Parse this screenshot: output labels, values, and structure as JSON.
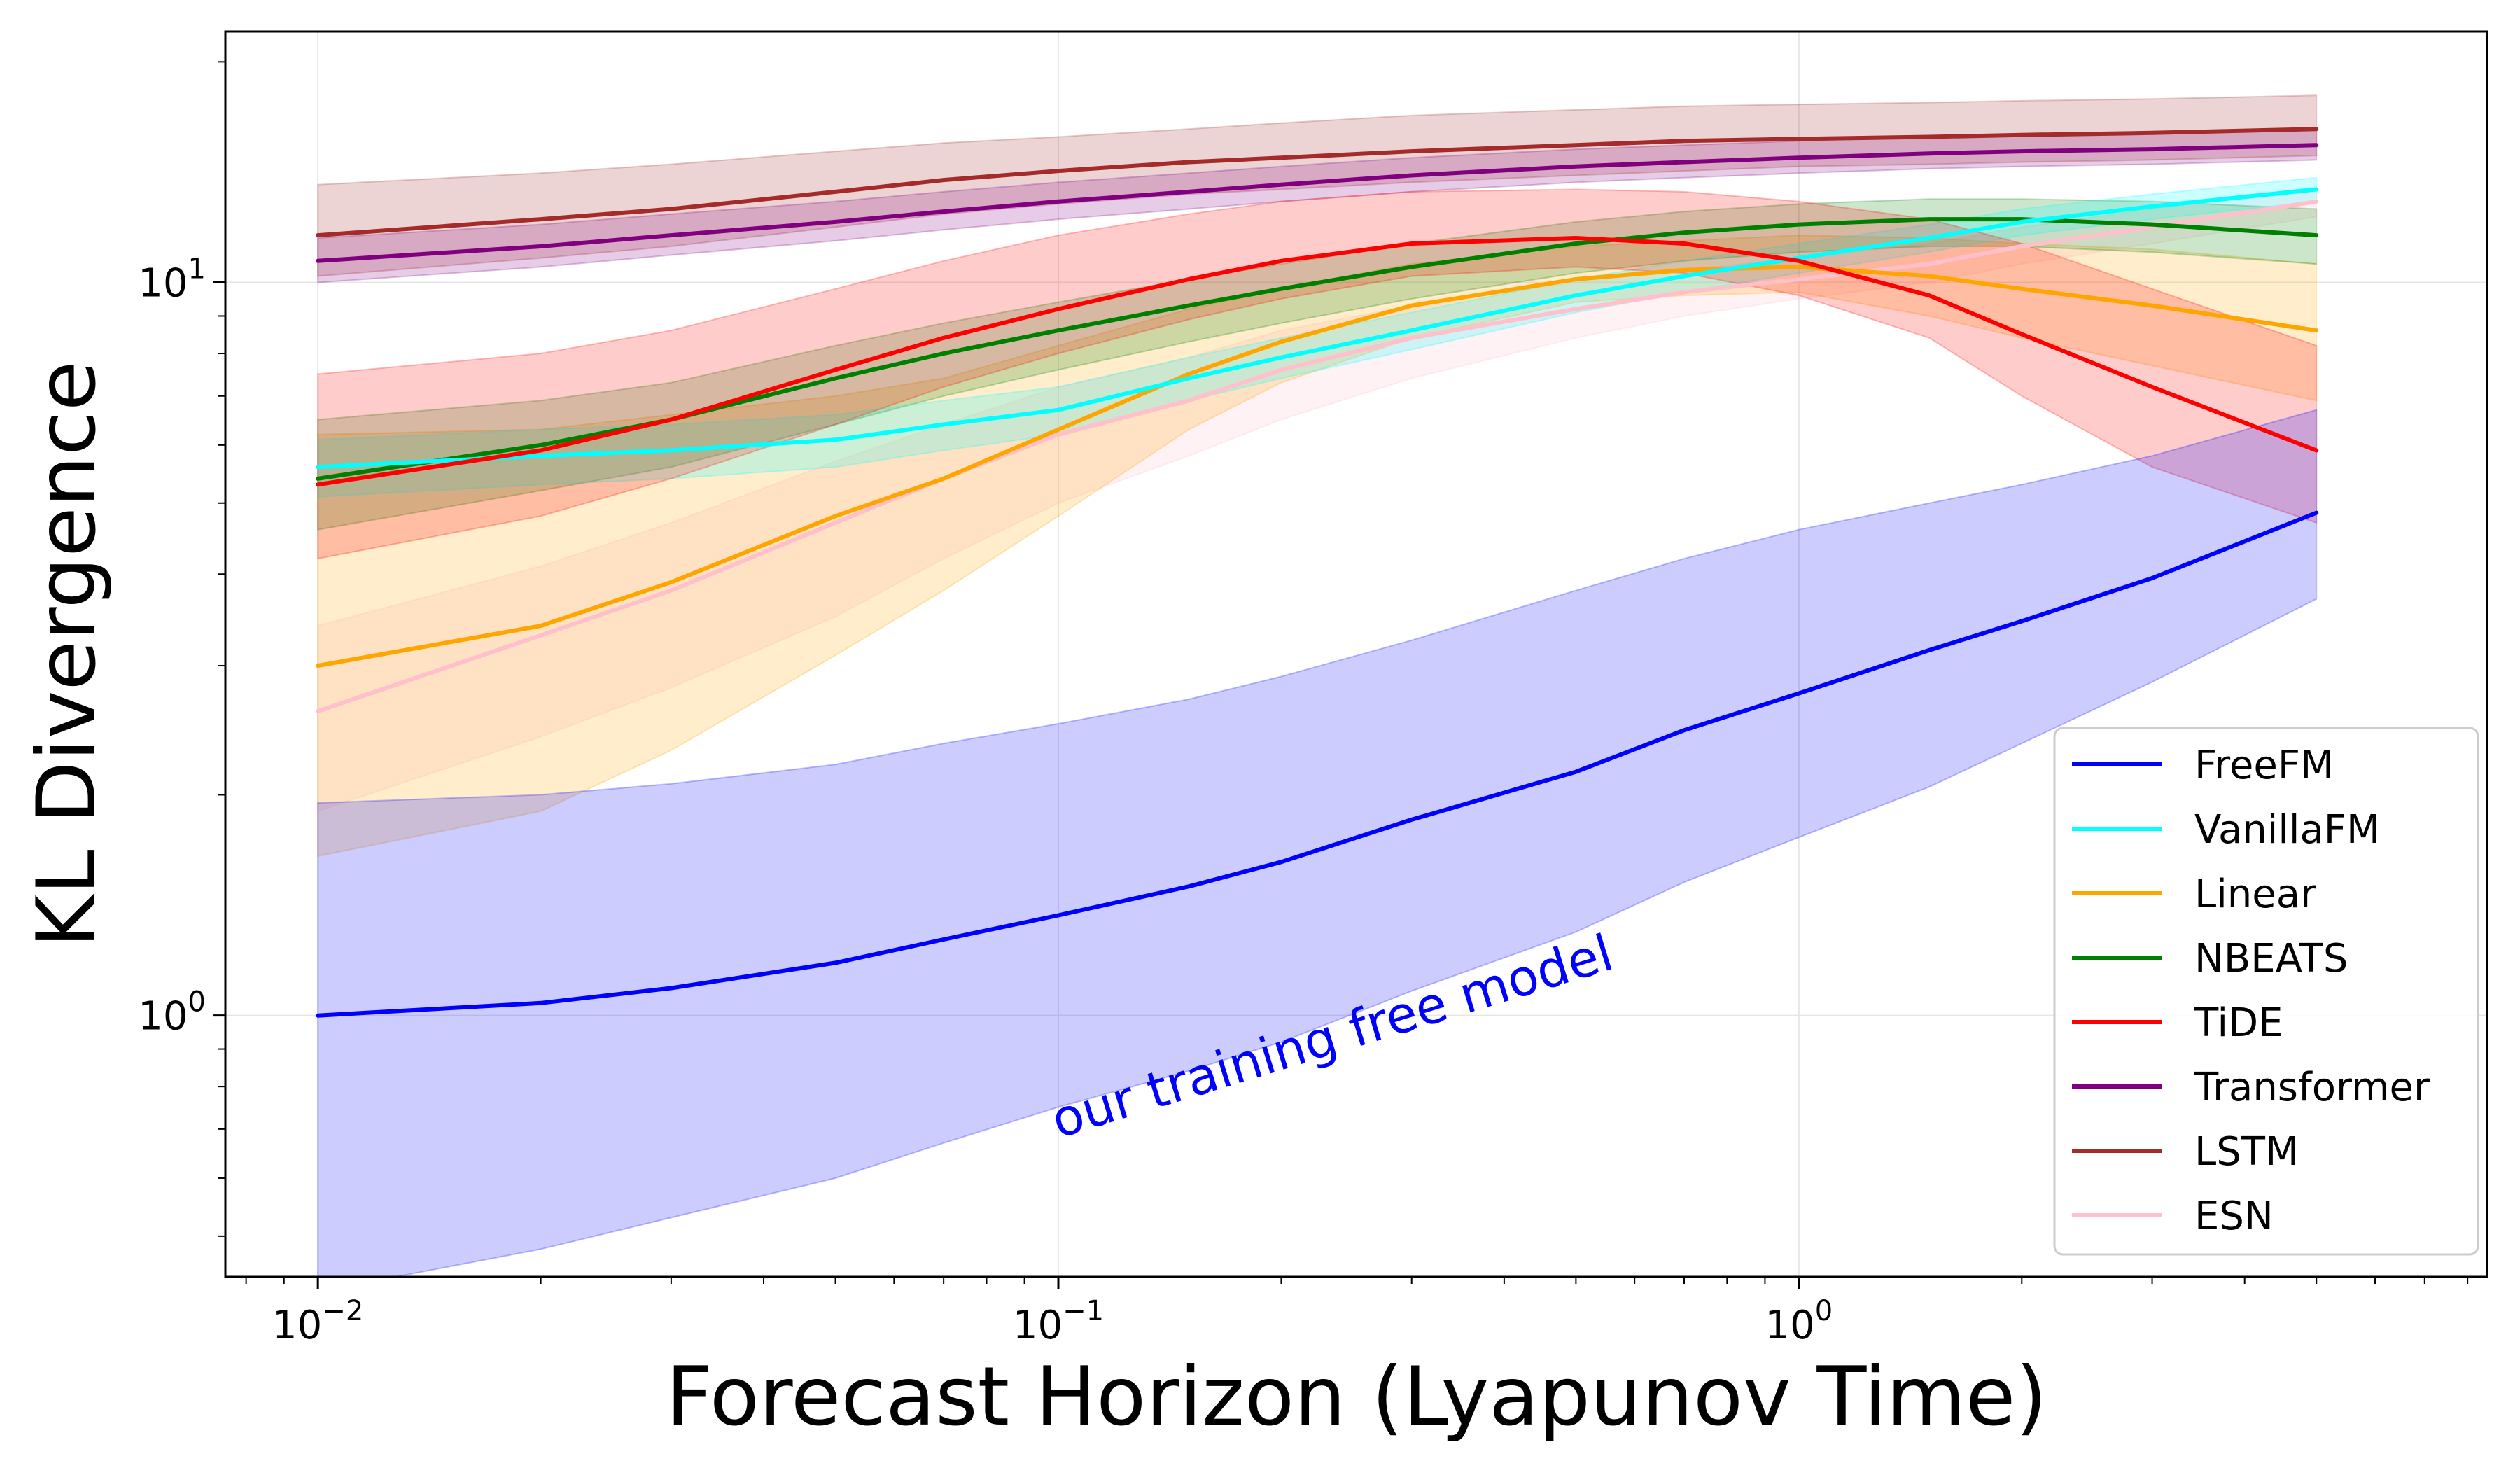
{
  "chart_data": {
    "type": "line",
    "xscale": "log",
    "yscale": "log",
    "xlabel": "Forecast Horizon (Lyapunov Time)",
    "ylabel": "KL Divergence",
    "xlim": [
      0.0075,
      8.5
    ],
    "ylim": [
      0.44,
      22
    ],
    "grid": true,
    "legend_position": "lower-right",
    "x": [
      0.01,
      0.02,
      0.03,
      0.05,
      0.07,
      0.1,
      0.15,
      0.2,
      0.3,
      0.5,
      0.7,
      1.0,
      1.5,
      2.0,
      3.0,
      5.0
    ],
    "xticks": [
      {
        "value": 0.01,
        "base": "10",
        "exp": "−2"
      },
      {
        "value": 0.1,
        "base": "10",
        "exp": "−1"
      },
      {
        "value": 1,
        "base": "10",
        "exp": "0"
      }
    ],
    "yticks": [
      {
        "value": 1,
        "base": "10",
        "exp": "0"
      },
      {
        "value": 10,
        "base": "10",
        "exp": "1"
      }
    ],
    "series": [
      {
        "name": "LSTM",
        "color": "#a52a2a",
        "values": [
          11.6,
          12.2,
          12.6,
          13.3,
          13.8,
          14.2,
          14.6,
          14.8,
          15.1,
          15.4,
          15.6,
          15.7,
          15.8,
          15.9,
          16.0,
          16.2
        ],
        "lower": [
          10.2,
          10.8,
          11.2,
          11.9,
          12.4,
          12.8,
          13.2,
          13.4,
          13.7,
          14.0,
          14.2,
          14.4,
          14.5,
          14.6,
          14.7,
          14.9
        ],
        "upper": [
          13.6,
          14.1,
          14.5,
          15.1,
          15.5,
          15.8,
          16.2,
          16.5,
          16.9,
          17.2,
          17.4,
          17.5,
          17.6,
          17.7,
          17.8,
          18.0
        ]
      },
      {
        "name": "Transformer",
        "color": "#800080",
        "values": [
          10.7,
          11.2,
          11.6,
          12.1,
          12.5,
          12.9,
          13.3,
          13.6,
          14.0,
          14.4,
          14.6,
          14.8,
          15.0,
          15.1,
          15.2,
          15.4
        ],
        "lower": [
          10.0,
          10.5,
          10.9,
          11.4,
          11.8,
          12.2,
          12.6,
          12.9,
          13.3,
          13.7,
          13.9,
          14.1,
          14.3,
          14.4,
          14.5,
          14.7
        ],
        "upper": [
          11.5,
          12.0,
          12.4,
          12.9,
          13.3,
          13.7,
          14.1,
          14.4,
          14.8,
          15.2,
          15.4,
          15.6,
          15.8,
          15.9,
          16.0,
          16.2
        ]
      },
      {
        "name": "ESN",
        "color": "#ffc0cb",
        "values": [
          2.6,
          3.3,
          3.8,
          4.7,
          5.4,
          6.2,
          6.9,
          7.6,
          8.4,
          9.2,
          9.7,
          10.1,
          10.6,
          11.2,
          11.9,
          12.9
        ],
        "lower": [
          1.9,
          2.4,
          2.8,
          3.5,
          4.2,
          5.0,
          5.8,
          6.5,
          7.4,
          8.4,
          9.0,
          9.5,
          10.0,
          10.6,
          11.3,
          12.3
        ],
        "upper": [
          3.4,
          4.1,
          4.7,
          5.7,
          6.4,
          7.2,
          7.9,
          8.6,
          9.3,
          10.0,
          10.4,
          10.8,
          11.3,
          11.9,
          12.6,
          13.5
        ]
      },
      {
        "name": "Linear",
        "color": "#ffa500",
        "values": [
          3.0,
          3.4,
          3.9,
          4.8,
          5.4,
          6.3,
          7.5,
          8.3,
          9.3,
          10.1,
          10.4,
          10.5,
          10.2,
          9.8,
          9.3,
          8.6
        ],
        "lower": [
          1.65,
          1.9,
          2.3,
          3.1,
          3.8,
          4.8,
          6.3,
          7.3,
          8.4,
          9.4,
          9.6,
          9.7,
          9.0,
          8.4,
          7.7,
          6.9
        ],
        "upper": [
          6.2,
          6.3,
          6.6,
          7.0,
          7.4,
          8.2,
          9.2,
          9.8,
          10.6,
          11.2,
          11.4,
          11.6,
          11.5,
          11.3,
          11.1,
          10.6
        ]
      },
      {
        "name": "NBEATS",
        "color": "#008000",
        "values": [
          5.4,
          6.0,
          6.5,
          7.4,
          8.0,
          8.6,
          9.3,
          9.8,
          10.5,
          11.3,
          11.7,
          12.0,
          12.2,
          12.2,
          12.0,
          11.6
        ],
        "lower": [
          4.6,
          5.2,
          5.6,
          6.4,
          7.0,
          7.6,
          8.3,
          8.8,
          9.5,
          10.3,
          10.7,
          11.0,
          11.2,
          11.2,
          11.0,
          10.6
        ],
        "upper": [
          6.5,
          6.9,
          7.3,
          8.2,
          8.8,
          9.4,
          10.1,
          10.6,
          11.3,
          12.1,
          12.5,
          12.8,
          13.0,
          13.0,
          12.9,
          12.6
        ]
      },
      {
        "name": "VanillaFM",
        "color": "#00ffff",
        "values": [
          5.6,
          5.8,
          5.9,
          6.1,
          6.4,
          6.7,
          7.4,
          7.9,
          8.6,
          9.6,
          10.2,
          10.8,
          11.5,
          12.1,
          12.7,
          13.4
        ],
        "lower": [
          5.1,
          5.3,
          5.4,
          5.6,
          5.9,
          6.2,
          6.9,
          7.4,
          8.1,
          9.1,
          9.7,
          10.3,
          11.0,
          11.6,
          12.2,
          12.9
        ],
        "upper": [
          6.1,
          6.3,
          6.4,
          6.6,
          6.9,
          7.2,
          7.9,
          8.4,
          9.1,
          10.1,
          10.7,
          11.3,
          12.0,
          12.6,
          13.2,
          13.9
        ]
      },
      {
        "name": "TiDE",
        "color": "#ff0000",
        "values": [
          5.3,
          5.9,
          6.5,
          7.6,
          8.4,
          9.2,
          10.1,
          10.7,
          11.3,
          11.5,
          11.3,
          10.7,
          9.6,
          8.5,
          7.2,
          5.9
        ],
        "lower": [
          4.2,
          4.8,
          5.4,
          6.4,
          7.2,
          8.0,
          8.9,
          9.5,
          10.2,
          10.5,
          10.3,
          9.6,
          8.4,
          7.0,
          5.6,
          4.7
        ],
        "upper": [
          7.5,
          8.0,
          8.6,
          9.8,
          10.7,
          11.6,
          12.4,
          12.9,
          13.3,
          13.4,
          13.3,
          12.9,
          12.2,
          11.3,
          9.8,
          8.2
        ]
      },
      {
        "name": "FreeFM",
        "color": "#0000ff",
        "values": [
          1.0,
          1.04,
          1.09,
          1.18,
          1.27,
          1.37,
          1.5,
          1.62,
          1.85,
          2.15,
          2.45,
          2.75,
          3.15,
          3.45,
          3.95,
          4.85
        ],
        "lower": [
          0.42,
          0.48,
          0.53,
          0.6,
          0.67,
          0.75,
          0.84,
          0.92,
          1.08,
          1.3,
          1.52,
          1.75,
          2.05,
          2.35,
          2.85,
          3.7
        ],
        "upper": [
          1.95,
          2.0,
          2.07,
          2.2,
          2.35,
          2.5,
          2.7,
          2.9,
          3.25,
          3.8,
          4.2,
          4.6,
          5.0,
          5.3,
          5.8,
          6.7
        ]
      }
    ],
    "legend_order": [
      "FreeFM",
      "VanillaFM",
      "Linear",
      "NBEATS",
      "TiDE",
      "Transformer",
      "LSTM",
      "ESN"
    ],
    "annotation": {
      "text": "our training free model",
      "color": "#0000ff",
      "x": 0.1,
      "y": 0.68,
      "rotation_deg": -17
    }
  }
}
